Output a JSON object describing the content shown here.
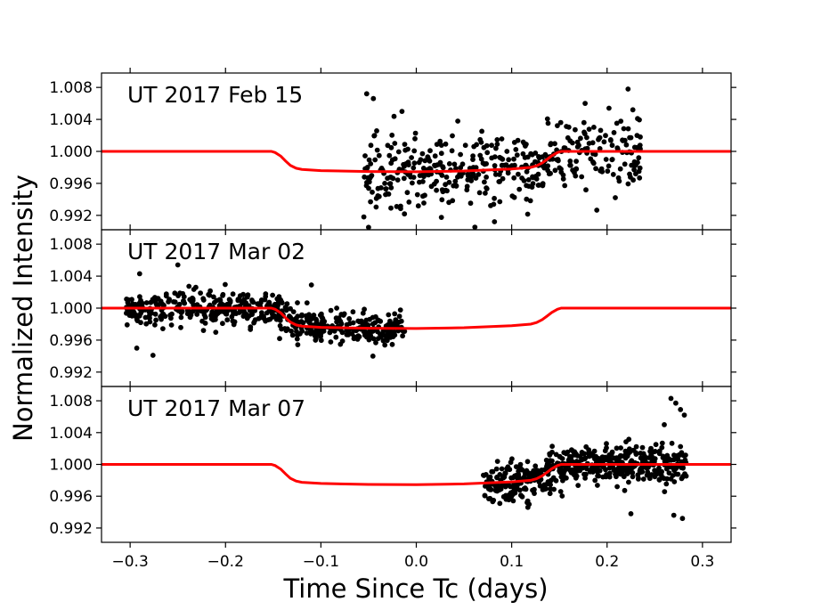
{
  "chart_data": {
    "type": "scatter",
    "xlabel": "Time Since Tc (days)",
    "ylabel": "Normalized Intensity",
    "xlim": [
      -0.33,
      0.33
    ],
    "xticks": [
      -0.3,
      -0.2,
      -0.1,
      0.0,
      0.1,
      0.2,
      0.3
    ],
    "xtick_labels": [
      "−0.3",
      "−0.2",
      "−0.1",
      "0.0",
      "0.1",
      "0.2",
      "0.3"
    ],
    "yticks": [
      0.992,
      0.996,
      1.0,
      1.004,
      1.008
    ],
    "ytick_labels": [
      "0.992",
      "0.996",
      "1.000",
      "1.004",
      "1.008"
    ],
    "colors": {
      "data": "#000000",
      "model": "#ff0000"
    },
    "model": {
      "name": "transit model",
      "x": [
        -0.33,
        -0.152,
        -0.148,
        -0.142,
        -0.137,
        -0.132,
        -0.126,
        -0.12,
        -0.1,
        -0.05,
        0.0,
        0.05,
        0.1,
        0.12,
        0.126,
        0.132,
        0.137,
        0.142,
        0.148,
        0.152,
        0.33
      ],
      "y": [
        1.0,
        1.0,
        0.99985,
        0.9994,
        0.9988,
        0.99825,
        0.9979,
        0.99775,
        0.9976,
        0.99748,
        0.99745,
        0.99755,
        0.9978,
        0.998,
        0.9982,
        0.99855,
        0.999,
        0.99945,
        0.99985,
        1.0,
        1.0
      ]
    },
    "panels": [
      {
        "title": "UT 2017 Feb 15",
        "ylim": [
          0.9902,
          1.0098
        ],
        "observations": {
          "x_range": [
            -0.055,
            0.235
          ],
          "n_points": 440,
          "scatter": 0.0021,
          "extremes": [
            {
              "x": -0.052,
              "y": 1.0072
            },
            {
              "x": -0.045,
              "y": 1.0066
            },
            {
              "x": -0.05,
              "y": 0.9905
            },
            {
              "x": -0.055,
              "y": 0.9918
            },
            {
              "x": 0.082,
              "y": 0.9912
            },
            {
              "x": 0.177,
              "y": 1.006
            },
            {
              "x": 0.202,
              "y": 1.0054
            },
            {
              "x": 0.222,
              "y": 1.0078
            },
            {
              "x": 0.227,
              "y": 1.0052
            },
            {
              "x": 0.232,
              "y": 1.0041
            },
            {
              "x": -0.015,
              "y": 1.005
            }
          ]
        }
      },
      {
        "title": "UT 2017 Mar 02",
        "ylim": [
          0.9902,
          1.0098
        ],
        "observations": {
          "x_range": [
            -0.305,
            -0.012
          ],
          "n_points": 560,
          "scatter": 0.0011,
          "extremes": [
            {
              "x": -0.29,
              "y": 1.0043
            },
            {
              "x": -0.25,
              "y": 1.0054
            },
            {
              "x": -0.276,
              "y": 0.9941
            },
            {
              "x": -0.293,
              "y": 0.995
            },
            {
              "x": -0.11,
              "y": 1.0029
            }
          ]
        }
      },
      {
        "title": "UT 2017 Mar 07",
        "ylim": [
          0.9902,
          1.0098
        ],
        "observations": {
          "x_range": [
            0.07,
            0.283
          ],
          "n_points": 560,
          "scatter": 0.0012,
          "extremes": [
            {
              "x": 0.267,
              "y": 1.0083
            },
            {
              "x": 0.272,
              "y": 1.0077
            },
            {
              "x": 0.277,
              "y": 1.0069
            },
            {
              "x": 0.281,
              "y": 1.0062
            },
            {
              "x": 0.26,
              "y": 1.005
            },
            {
              "x": 0.27,
              "y": 0.9936
            },
            {
              "x": 0.279,
              "y": 0.9932
            },
            {
              "x": 0.225,
              "y": 0.9938
            },
            {
              "x": 0.117,
              "y": 0.9946
            }
          ]
        }
      }
    ]
  }
}
